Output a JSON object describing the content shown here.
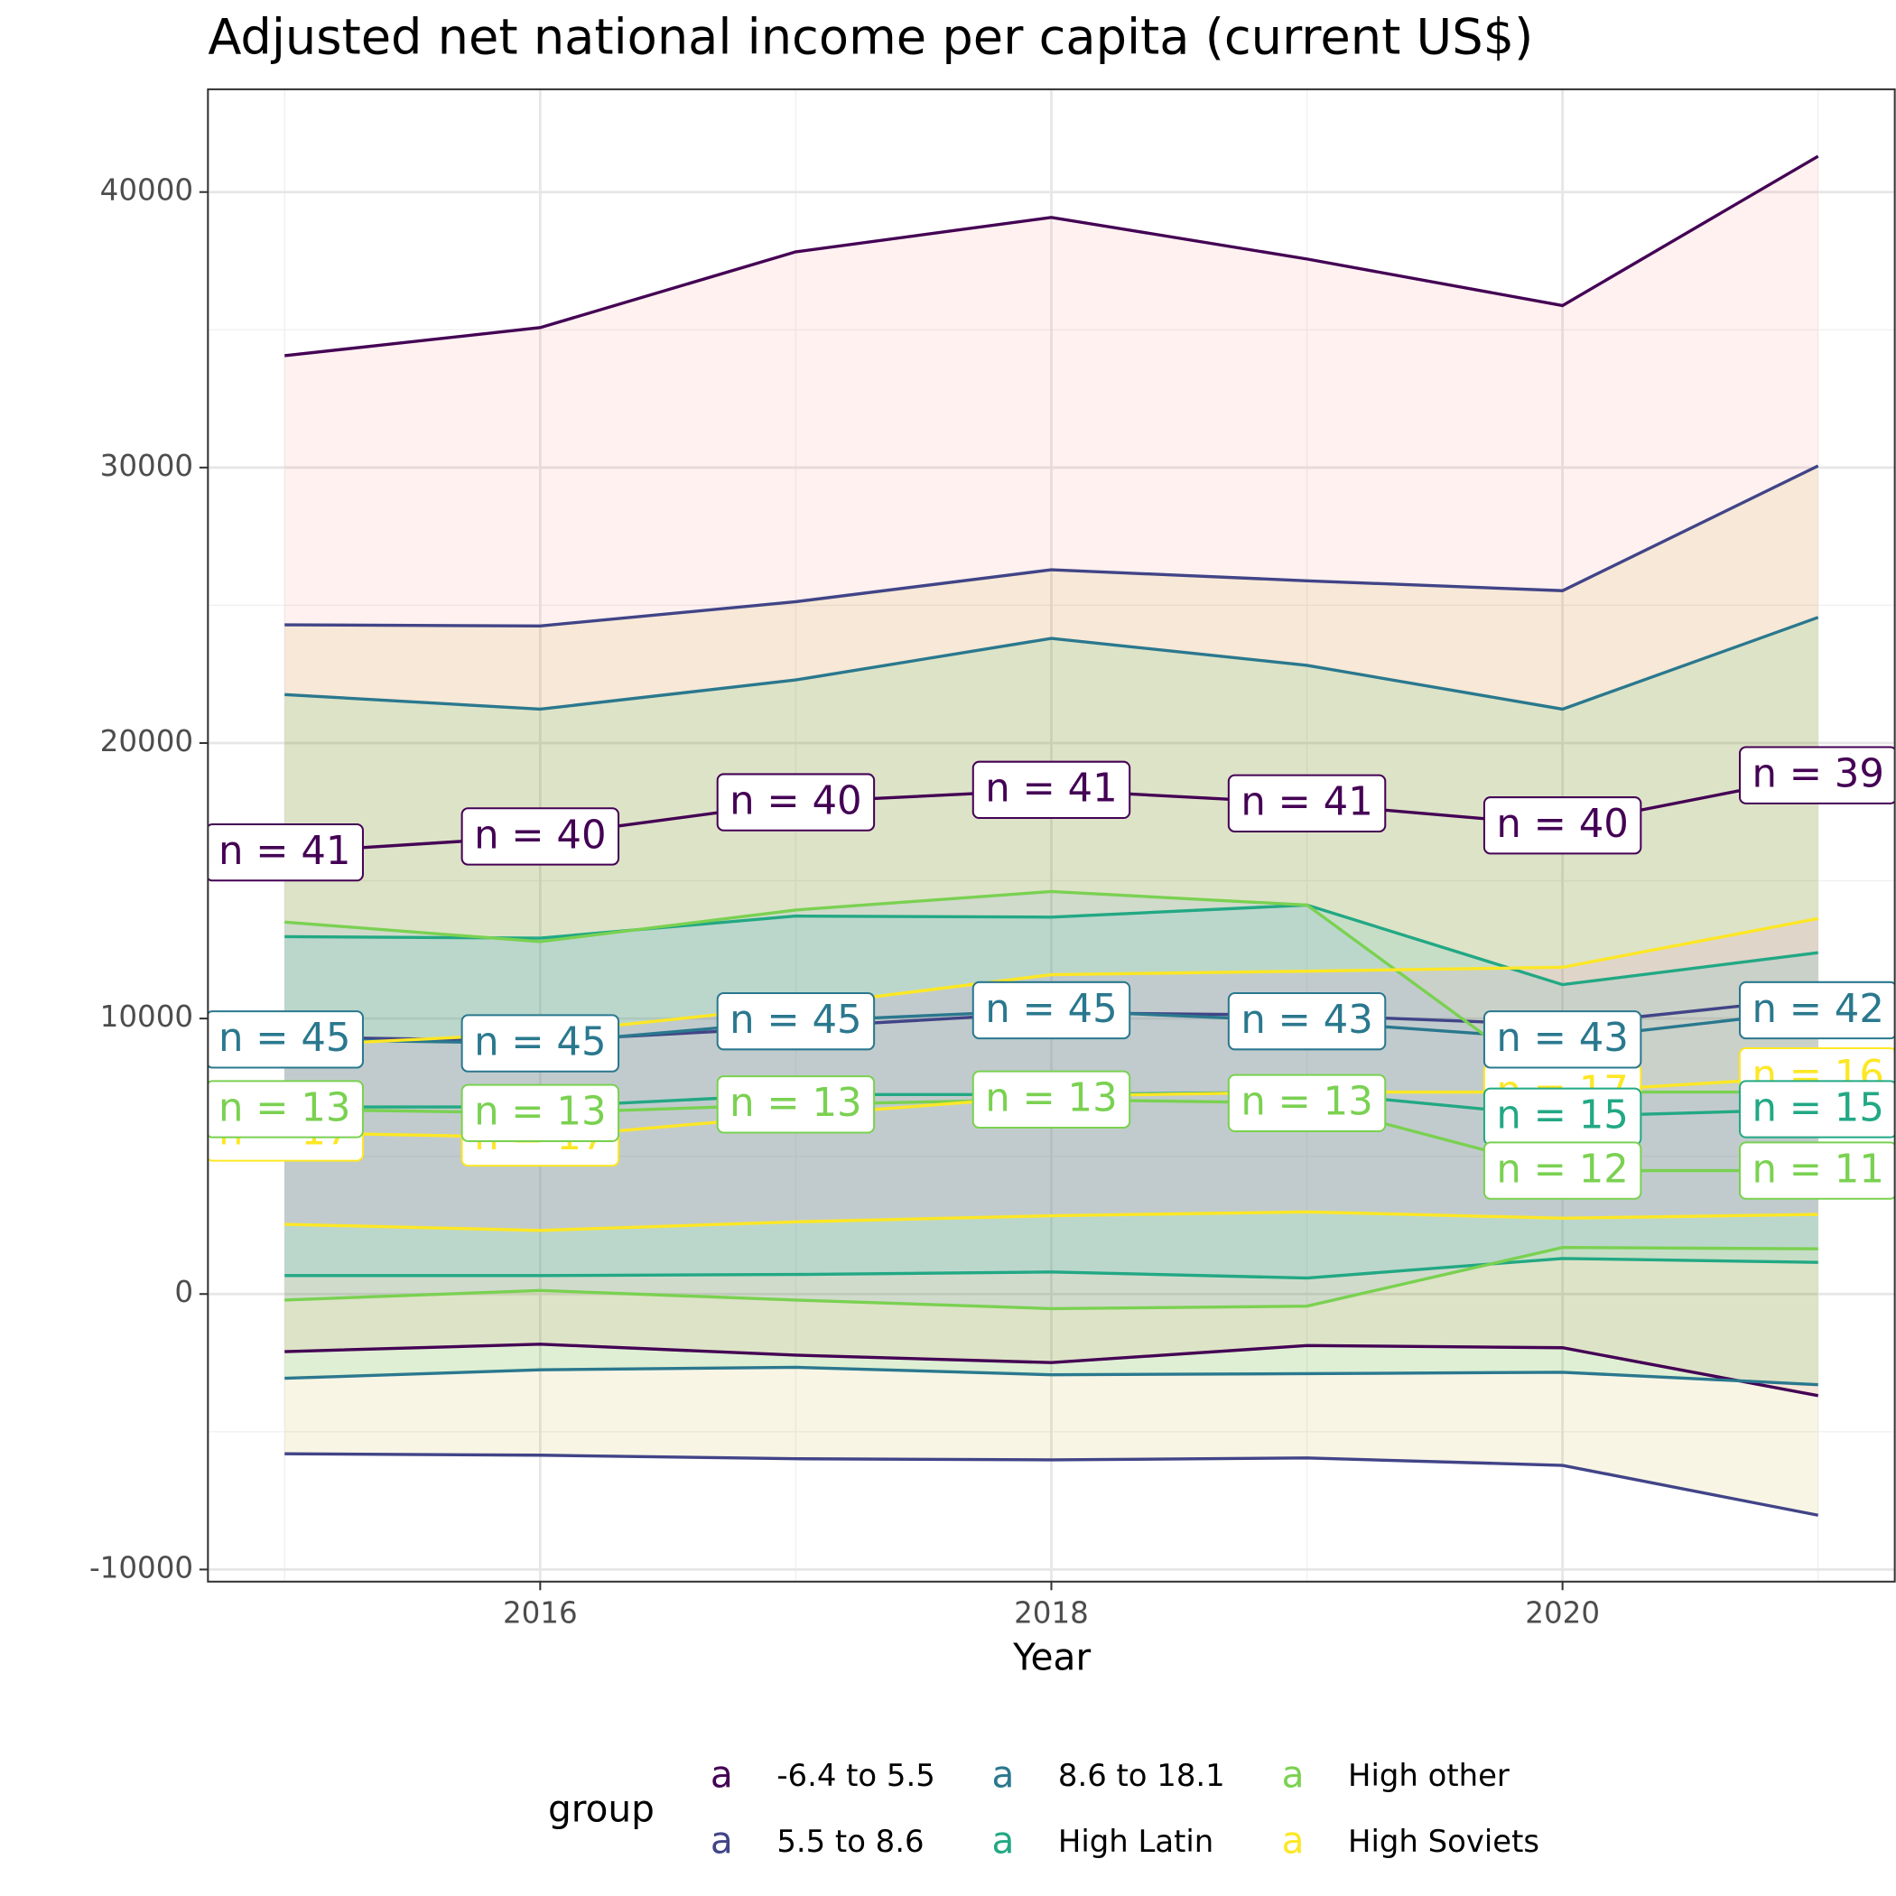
{
  "chart_data": {
    "type": "line",
    "title": "Adjusted net national income per capita (current US$)",
    "xlabel": "Year",
    "legend_title": "group",
    "legend_glyph": "a",
    "legend_position": "bottom",
    "grid": true,
    "x": [
      2015,
      2016,
      2017,
      2018,
      2019,
      2020,
      2021
    ],
    "xlim": [
      2014.7,
      2021.3
    ],
    "ylim": [
      -10440,
      43730
    ],
    "xticks": [
      2016,
      2018,
      2020
    ],
    "yticks": [
      -10000,
      0,
      10000,
      20000,
      30000,
      40000
    ],
    "x_minor_ticks": [
      2015,
      2017,
      2019,
      2021
    ],
    "y_minor_ticks": [
      -5000,
      5000,
      15000,
      25000,
      35000
    ],
    "series": [
      {
        "name": "-6.4 to 5.5",
        "color": "#440154",
        "fill": "#F8766D",
        "values": [
          16030,
          16610,
          17850,
          18300,
          17810,
          17010,
          18830
        ],
        "upper": [
          34060,
          35080,
          37830,
          39080,
          37570,
          35880,
          41300
        ],
        "lower": [
          -2090,
          -1820,
          -2220,
          -2490,
          -1870,
          -1950,
          -3690
        ],
        "labels": [
          "n = 41",
          "n = 40",
          "n = 40",
          "n = 41",
          "n = 41",
          "n = 40",
          "n = 39"
        ]
      },
      {
        "name": "5.5 to 8.6",
        "color": "#414487",
        "fill": "#B79F00",
        "values": [
          9330,
          9190,
          9680,
          10210,
          10120,
          9770,
          10750
        ],
        "upper": [
          24290,
          24250,
          25130,
          26290,
          25890,
          25530,
          30060
        ],
        "lower": [
          -5800,
          -5850,
          -5980,
          -6020,
          -5950,
          -6220,
          -8030
        ],
        "labels": [
          null,
          null,
          null,
          null,
          null,
          null,
          null
        ]
      },
      {
        "name": "8.6 to 18.1",
        "color": "#2A788E",
        "fill": "#00BA38",
        "values": [
          9240,
          9100,
          9900,
          10300,
          9900,
          9240,
          10300
        ],
        "upper": [
          21760,
          21230,
          22290,
          23800,
          22820,
          21230,
          24560
        ],
        "lower": [
          -3060,
          -2750,
          -2660,
          -2930,
          -2890,
          -2840,
          -3290
        ],
        "labels": [
          "n = 45",
          "n = 45",
          "n = 45",
          "n = 45",
          "n = 43",
          "n = 43",
          "n = 42"
        ]
      },
      {
        "name": "High Latin",
        "color": "#22A884",
        "fill": "#00BFC4",
        "values": [
          6790,
          6790,
          7240,
          7240,
          7330,
          6440,
          6710
        ],
        "upper": [
          12970,
          12920,
          13720,
          13680,
          14120,
          11230,
          12390
        ],
        "lower": [
          670,
          670,
          710,
          800,
          580,
          1290,
          1150
        ],
        "labels": [
          null,
          null,
          null,
          null,
          null,
          "n = 15",
          "n = 15"
        ]
      },
      {
        "name": "High other",
        "color": "#7AD151",
        "fill": "#619CFF",
        "values": [
          6710,
          6570,
          6880,
          7060,
          6930,
          4480,
          4480
        ],
        "upper": [
          13500,
          12790,
          13940,
          14610,
          14120,
          7330,
          7330
        ],
        "lower": [
          -220,
          130,
          -220,
          -530,
          -440,
          1690,
          1640
        ],
        "labels": [
          "n = 13",
          "n = 13",
          "n = 13",
          "n = 13",
          "n = 13",
          "n = 12",
          "n = 11"
        ]
      },
      {
        "name": "High Soviets",
        "color": "#FDE725",
        "fill": "#F564E3",
        "values": [
          5860,
          5680,
          6480,
          7190,
          7330,
          7330,
          7900
        ],
        "upper": [
          9010,
          9460,
          10440,
          11590,
          11720,
          11860,
          13630
        ],
        "lower": [
          2530,
          2310,
          2620,
          2840,
          2980,
          2750,
          2890
        ],
        "labels": [
          "n = 17",
          "n = 17",
          null,
          null,
          null,
          "n = 17",
          "n = 16"
        ]
      }
    ]
  }
}
